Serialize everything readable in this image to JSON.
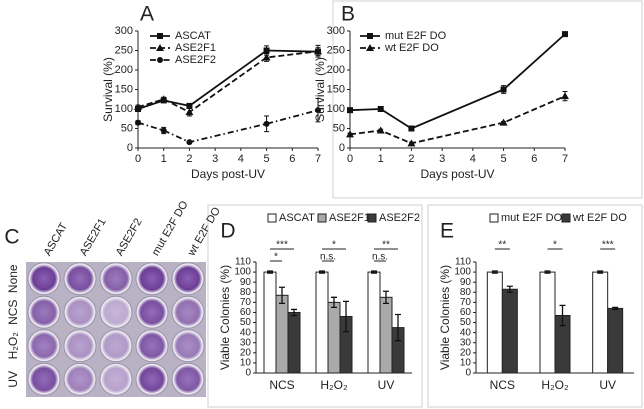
{
  "chart_data": [
    {
      "type": "line",
      "panel": "A",
      "x": [
        0,
        1,
        2,
        5,
        7
      ],
      "xlim": [
        0,
        7
      ],
      "xticks": [
        0,
        1,
        2,
        3,
        4,
        5,
        6,
        7
      ],
      "ylim": [
        0,
        300
      ],
      "yticks": [
        0,
        50,
        100,
        150,
        200,
        250,
        300
      ],
      "grid": false,
      "legend": "top-left",
      "xlabel": "Days post-UV",
      "ylabel": "Survival (%)",
      "series": [
        {
          "name": "ASCAT",
          "color": "#111111",
          "line_style": "solid",
          "marker": "square",
          "values": [
            100,
            122,
            108,
            250,
            247
          ],
          "errors": [
            5,
            5,
            5,
            12,
            10
          ]
        },
        {
          "name": "ASE2F1",
          "color": "#111111",
          "line_style": "dashed",
          "marker": "triangle",
          "values": [
            105,
            125,
            92,
            232,
            248
          ],
          "errors": [
            5,
            5,
            10,
            10,
            15
          ]
        },
        {
          "name": "ASE2F2",
          "color": "#111111",
          "line_style": "dash-dot",
          "marker": "circle",
          "values": [
            65,
            45,
            15,
            62,
            97
          ],
          "errors": [
            5,
            8,
            3,
            20,
            30
          ]
        }
      ]
    },
    {
      "type": "line",
      "panel": "B",
      "x": [
        0,
        1,
        2,
        5,
        7
      ],
      "xlim": [
        0,
        7
      ],
      "xticks": [
        0,
        1,
        2,
        3,
        4,
        5,
        6,
        7
      ],
      "ylim": [
        0,
        300
      ],
      "yticks": [
        0,
        50,
        100,
        150,
        200,
        250,
        300
      ],
      "grid": false,
      "legend": "top-left",
      "xlabel": "Days post-UV",
      "ylabel": "Survival (%)",
      "series": [
        {
          "name": "mut E2F DO",
          "color": "#111111",
          "line_style": "solid",
          "marker": "square",
          "values": [
            97,
            100,
            50,
            150,
            292
          ],
          "errors": [
            3,
            3,
            3,
            10,
            5
          ]
        },
        {
          "name": "wt E2F DO",
          "color": "#111111",
          "line_style": "dashed",
          "marker": "triangle",
          "values": [
            35,
            45,
            12,
            65,
            133
          ],
          "errors": [
            3,
            3,
            3,
            3,
            12
          ]
        }
      ]
    },
    {
      "type": "bar",
      "panel": "D",
      "categories": [
        "NCS",
        "H₂O₂",
        "UV"
      ],
      "ylim": [
        0,
        110
      ],
      "yticks": [
        0,
        10,
        20,
        30,
        40,
        50,
        60,
        70,
        80,
        90,
        100,
        110
      ],
      "grid": false,
      "legend": "top",
      "ylabel": "Viable Colonies (%)",
      "annotations": [
        [
          "***",
          "*"
        ],
        [
          "*",
          "n.s."
        ],
        [
          "**",
          "n.s."
        ]
      ],
      "series": [
        {
          "name": "ASCAT",
          "color": "#ffffff",
          "values": [
            100,
            100,
            100
          ],
          "errors": [
            1,
            1,
            1
          ]
        },
        {
          "name": "ASE2F1",
          "color": "#aaaaaa",
          "values": [
            77,
            70,
            75
          ],
          "errors": [
            8,
            5,
            6
          ]
        },
        {
          "name": "ASE2F2",
          "color": "#3a3a3a",
          "values": [
            60,
            56,
            45
          ],
          "errors": [
            3,
            15,
            13
          ]
        }
      ]
    },
    {
      "type": "bar",
      "panel": "E",
      "categories": [
        "NCS",
        "H₂O₂",
        "UV"
      ],
      "ylim": [
        0,
        110
      ],
      "yticks": [
        0,
        10,
        20,
        30,
        40,
        50,
        60,
        70,
        80,
        90,
        100,
        110
      ],
      "grid": false,
      "legend": "top",
      "ylabel": "Viable Colonies (%)",
      "annotations": [
        [
          "**"
        ],
        [
          "*"
        ],
        [
          "***"
        ]
      ],
      "series": [
        {
          "name": "mut E2F DO",
          "color": "#ffffff",
          "values": [
            100,
            100,
            100
          ],
          "errors": [
            1,
            1,
            1
          ]
        },
        {
          "name": "wt E2F DO",
          "color": "#3a3a3a",
          "values": [
            83,
            57,
            64
          ],
          "errors": [
            3,
            10,
            1
          ]
        }
      ]
    }
  ],
  "plate_panel": {
    "panel": "C",
    "columns": [
      "ASCAT",
      "ASE2F1",
      "ASE2F2",
      "mut E2F DO",
      "wt E2F DO"
    ],
    "rows": [
      "None",
      "NCS",
      "H₂O₂",
      "UV"
    ]
  }
}
